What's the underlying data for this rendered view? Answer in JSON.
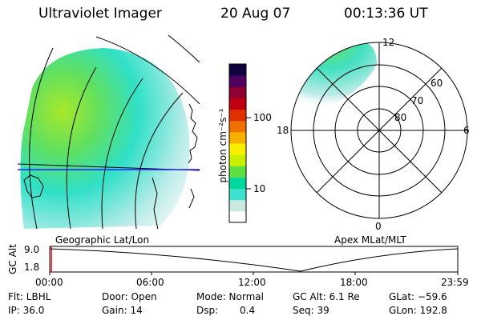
{
  "header": {
    "instrument": "Ultraviolet Imager",
    "date": "20 Aug 07",
    "time": "00:13:36 UT"
  },
  "left_map": {
    "label": "Geographic Lat/Lon"
  },
  "right_map": {
    "label": "Apex  MLat/MLT",
    "mlt_labels": {
      "top": "12",
      "left": "18",
      "right": "6",
      "bottom": "0"
    },
    "lat_labels": [
      "60",
      "70",
      "80"
    ]
  },
  "colorbar": {
    "unit_label": "photon cm⁻²s⁻¹",
    "ticks": [
      "100",
      "10"
    ],
    "colors": [
      "#ffffff",
      "#c8e8e0",
      "#40e0d0",
      "#00d8a0",
      "#60e040",
      "#c8f000",
      "#f8f000",
      "#f8b000",
      "#f07000",
      "#e03000",
      "#c00010",
      "#900030",
      "#500060",
      "#100040"
    ]
  },
  "timeline": {
    "axis_label": "GC Alt",
    "y_ticks": [
      "9.0",
      "1.8"
    ],
    "x_ticks": [
      "00:00",
      "06:00",
      "12:00",
      "18:00",
      "23:59"
    ],
    "marker_color": "#e00000"
  },
  "info": {
    "flt": "Flt: LBHL",
    "ip": "IP: 36.0",
    "door": "Door: Open",
    "gain": "Gain: 14",
    "mode": "Mode: Normal",
    "dsp_label": "Dsp:",
    "dsp_value": "0.4",
    "gcalt": "GC Alt: 6.1 Re",
    "seq": "Seq: 39",
    "glat": "GLat: −59.6",
    "glon": "GLon: 192.8"
  }
}
